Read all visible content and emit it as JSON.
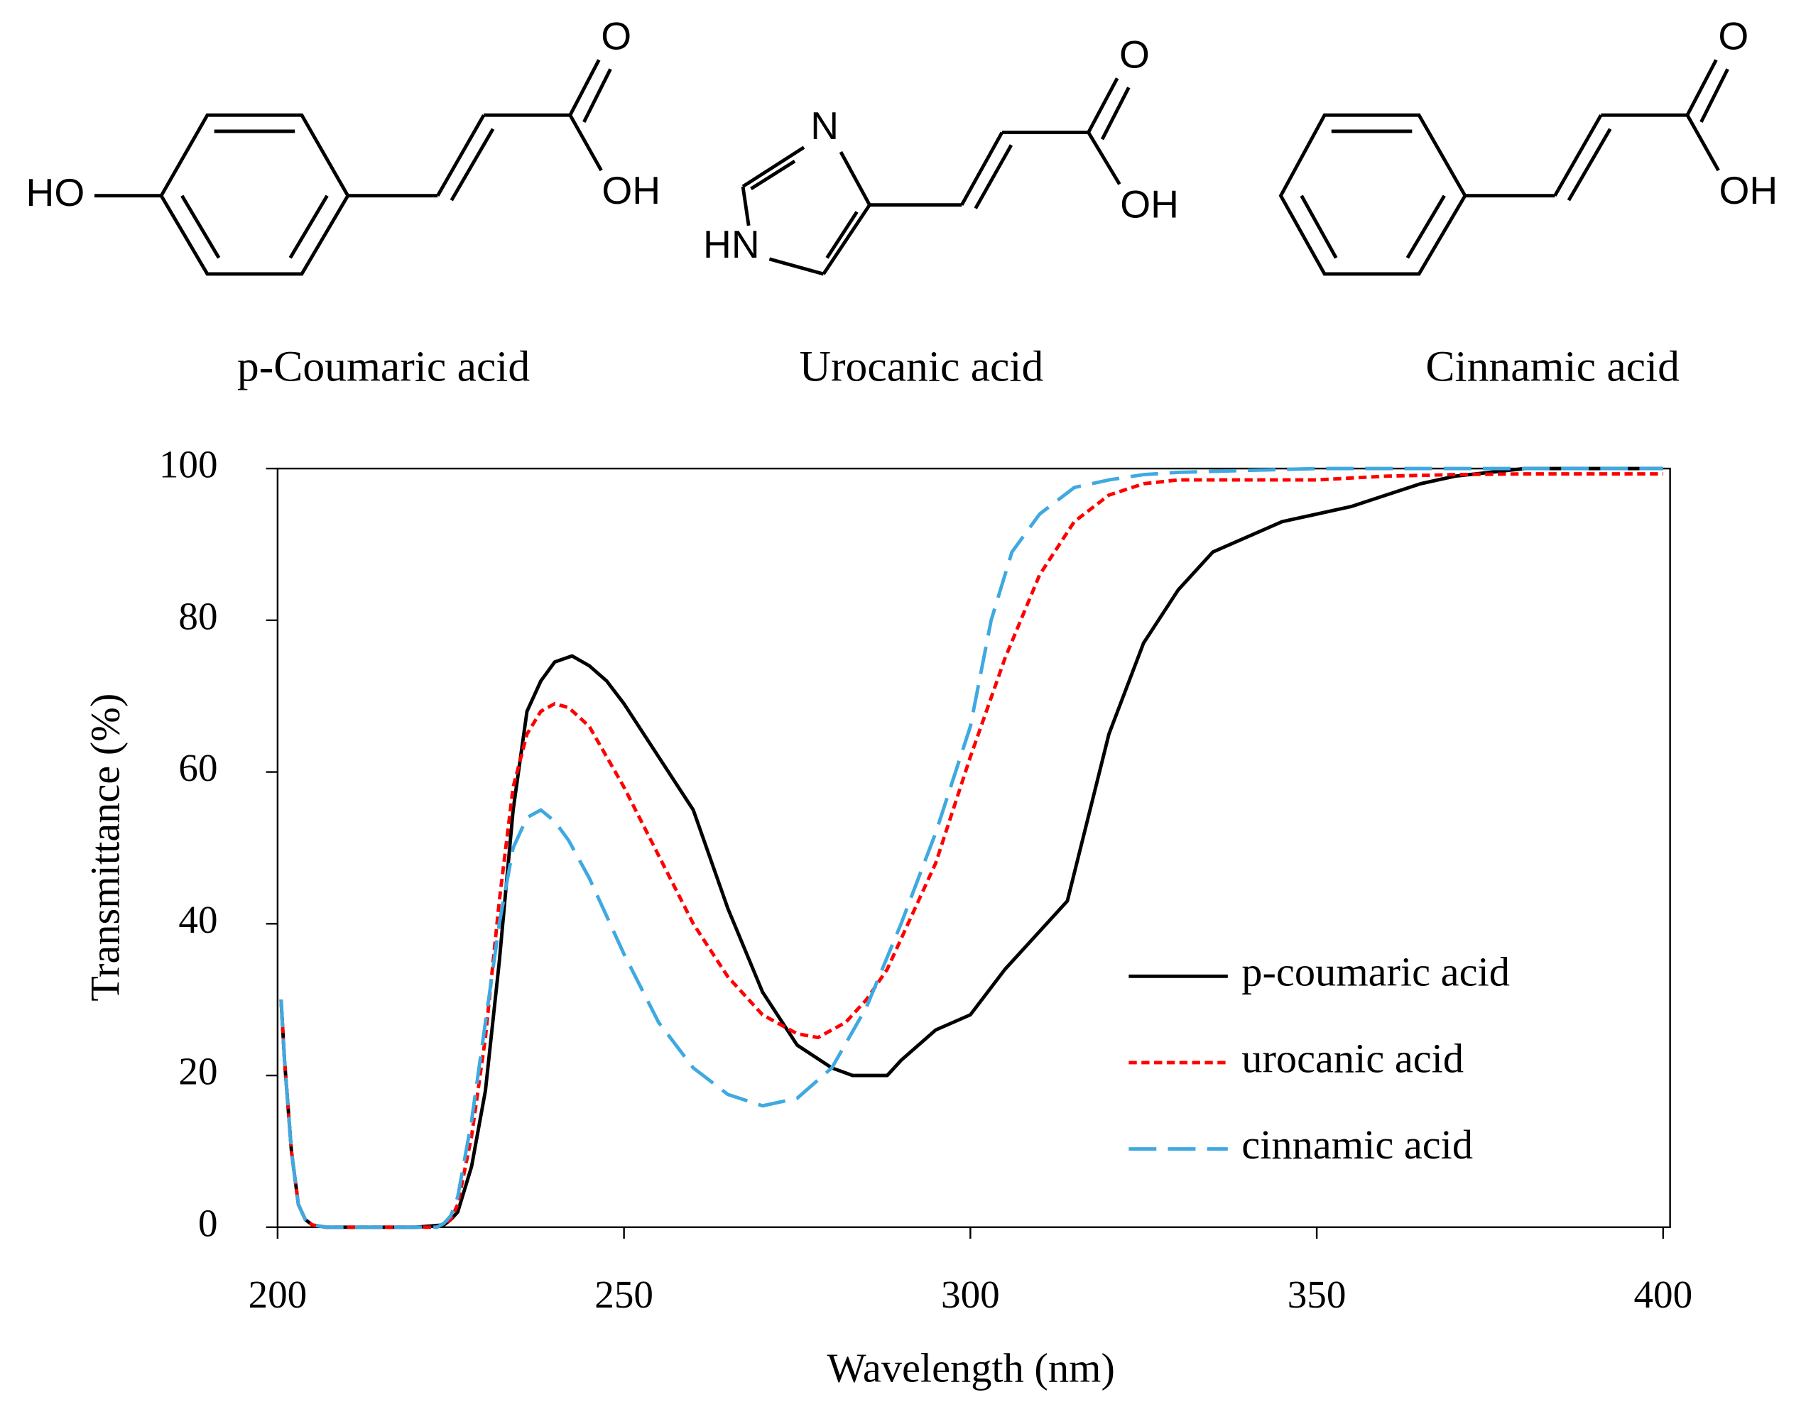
{
  "structures": [
    {
      "name": "p-Coumaric acid",
      "atoms": [
        "HO",
        "O",
        "OH"
      ]
    },
    {
      "name": "Urocanic acid",
      "atoms": [
        "N",
        "HN",
        "O",
        "OH"
      ]
    },
    {
      "name": "Cinnamic acid",
      "atoms": [
        "O",
        "OH"
      ]
    }
  ],
  "chart_data": {
    "type": "line",
    "xlabel": "Wavelength (nm)",
    "ylabel": "Transmittance (%)",
    "xlim": [
      200,
      401
    ],
    "ylim": [
      0,
      100
    ],
    "xticks": [
      200,
      250,
      300,
      350,
      400
    ],
    "yticks": [
      0,
      20,
      40,
      60,
      80,
      100
    ],
    "legend": "lower right",
    "series": [
      {
        "name": "p-coumaric acid",
        "color": "#000000",
        "dash": "solid",
        "x": [
          200.5,
          201,
          202,
          203,
          204,
          205,
          207,
          210,
          215,
          220,
          224,
          225,
          226,
          228,
          230,
          232,
          234,
          236,
          238,
          240,
          242.5,
          245,
          247.5,
          250,
          255,
          260,
          265,
          270,
          275,
          280,
          283,
          288,
          290,
          295,
          300,
          305,
          310,
          314,
          320,
          325,
          330,
          335,
          340,
          345,
          350,
          355,
          360,
          365,
          370,
          375,
          380,
          390,
          400
        ],
        "values": [
          30,
          22,
          10,
          3,
          1,
          0.3,
          0,
          0,
          0,
          0,
          0.3,
          1,
          2,
          8,
          18,
          35,
          55,
          68,
          72,
          74.5,
          75.3,
          74,
          72,
          69,
          62,
          55,
          42,
          31,
          24,
          21,
          20,
          20,
          22,
          26,
          28,
          34,
          39,
          43,
          65,
          77,
          84,
          89,
          91,
          93,
          94,
          95,
          96.5,
          98,
          99,
          99.5,
          100,
          100,
          100
        ]
      },
      {
        "name": "urocanic acid",
        "color": "#ff0000",
        "dash": "short",
        "x": [
          200.5,
          201,
          202,
          203,
          204,
          205,
          207,
          210,
          215,
          220,
          223,
          224,
          225,
          226,
          228,
          230,
          232,
          234,
          236,
          238,
          240,
          242,
          245,
          250,
          255,
          260,
          265,
          270,
          275,
          278,
          282,
          285,
          288,
          290,
          295,
          300,
          305,
          310,
          315,
          320,
          325,
          330,
          340,
          350,
          360,
          370,
          380,
          400
        ],
        "values": [
          30,
          22,
          10,
          3,
          1,
          0.3,
          0,
          0,
          0,
          0,
          0,
          0.5,
          1,
          3,
          12,
          25,
          43,
          58,
          65,
          68,
          69,
          68.5,
          66,
          58,
          49,
          40,
          33,
          28,
          25.5,
          25,
          27,
          30,
          34,
          38,
          48,
          62,
          75,
          86,
          93,
          96.5,
          98,
          98.5,
          98.5,
          98.5,
          99,
          99.2,
          99.3,
          99.3
        ]
      },
      {
        "name": "cinnamic acid",
        "color": "#3fa9e0",
        "dash": "long",
        "x": [
          200.5,
          201,
          202,
          203,
          204,
          205,
          207,
          210,
          215,
          220,
          223,
          224,
          225,
          226,
          228,
          230,
          232,
          234,
          236,
          238,
          240,
          242,
          245,
          250,
          255,
          260,
          265,
          270,
          275,
          280,
          285,
          290,
          295,
          300,
          303,
          306,
          310,
          315,
          320,
          325,
          330,
          350,
          400
        ],
        "values": [
          30,
          22,
          10,
          3,
          1,
          0.3,
          0,
          0,
          0,
          0,
          0,
          0.5,
          1.5,
          4,
          14,
          27,
          40,
          50,
          54,
          55,
          53.5,
          51,
          46,
          36,
          27,
          21,
          17.5,
          16,
          17,
          21,
          29,
          40,
          52,
          66,
          80,
          89,
          94,
          97.5,
          98.5,
          99.2,
          99.5,
          100,
          100
        ]
      }
    ]
  }
}
